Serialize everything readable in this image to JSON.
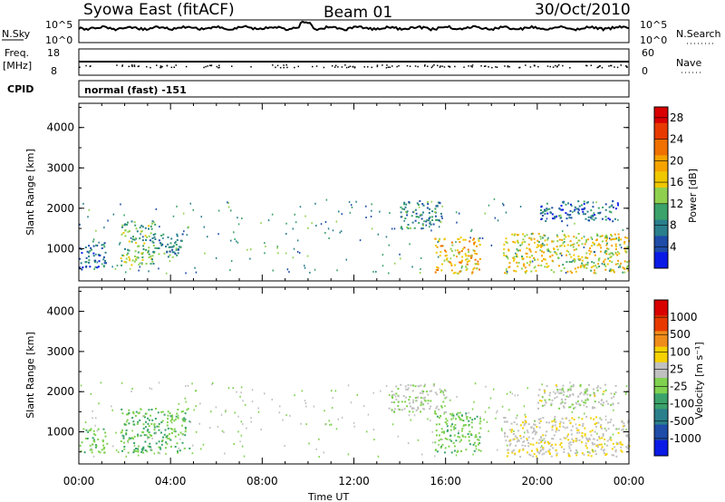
{
  "header": {
    "title": "Syowa East (fitACF)",
    "beam": "Beam 01",
    "date": "30/Oct/2010"
  },
  "top_strip": {
    "left_label": "N.Sky",
    "left_ticks": [
      "10^5",
      "10^0"
    ],
    "right_label": "N.Search",
    "right_ticks": [
      "10^5",
      "10^0"
    ]
  },
  "freq_strip": {
    "left_label_1": "Freq.",
    "left_label_2": "[MHz]",
    "left_ticks": [
      "18",
      "8"
    ],
    "right_label": "Nave",
    "right_ticks": [
      "60",
      "0"
    ]
  },
  "cpid": {
    "label": "CPID",
    "value": "normal (fast) -151"
  },
  "x_axis": {
    "label": "Time UT",
    "ticks": [
      "00:00",
      "04:00",
      "08:00",
      "12:00",
      "16:00",
      "20:00",
      "00:00"
    ]
  },
  "colors": {
    "power_scale": [
      "#0a1ae6",
      "#1e4ca8",
      "#2a7f8c",
      "#3aa26a",
      "#8fd14f",
      "#f0c800",
      "#f5a300",
      "#f07000",
      "#e83a00",
      "#d90000"
    ],
    "velocity_scale": [
      "#d90000",
      "#e83a00",
      "#f08c1a",
      "#f5d200",
      "#c0c0c0",
      "#7fd14f",
      "#3aa26a",
      "#2a7f8c",
      "#1e4ca8",
      "#0a1ae6"
    ]
  },
  "chart_data": [
    {
      "type": "heatmap",
      "name": "power",
      "ylabel": "Slant Range [km]",
      "xlabel": "Time UT",
      "xlim": [
        0,
        24
      ],
      "ylim": [
        200,
        4600
      ],
      "yticks": [
        "1000",
        "2000",
        "3000",
        "4000"
      ],
      "colorbar": {
        "label": "Power [dB]",
        "ticks": [
          "4",
          "8",
          "12",
          "16",
          "20",
          "24",
          "28"
        ],
        "range": [
          0,
          30
        ]
      },
      "echo_regions": [
        {
          "t0": 0.0,
          "t1": 1.2,
          "r0": 500,
          "r1": 1200,
          "value": 6
        },
        {
          "t0": 1.8,
          "t1": 3.3,
          "r0": 600,
          "r1": 1700,
          "value": 12
        },
        {
          "t0": 3.0,
          "t1": 4.5,
          "r0": 800,
          "r1": 1400,
          "value": 9
        },
        {
          "t0": 14.0,
          "t1": 15.8,
          "r0": 1500,
          "r1": 2200,
          "value": 8
        },
        {
          "t0": 15.5,
          "t1": 17.5,
          "r0": 400,
          "r1": 1300,
          "value": 18
        },
        {
          "t0": 18.5,
          "t1": 24.0,
          "r0": 400,
          "r1": 1400,
          "value": 16
        },
        {
          "t0": 20.0,
          "t1": 23.5,
          "r0": 1700,
          "r1": 2200,
          "value": 6
        }
      ]
    },
    {
      "type": "heatmap",
      "name": "velocity",
      "ylabel": "Slant Range [km]",
      "xlabel": "Time UT",
      "xlim": [
        0,
        24
      ],
      "ylim": [
        200,
        4600
      ],
      "yticks": [
        "1000",
        "2000",
        "3000",
        "4000"
      ],
      "colorbar": {
        "label": "Velocity [m s⁻¹]",
        "ticks": [
          "1000",
          "500",
          "100",
          "25",
          "-25",
          "-100",
          "-500",
          "-1000"
        ],
        "range": [
          -1000,
          1000
        ]
      },
      "echo_regions": [
        {
          "t0": 0.0,
          "t1": 1.2,
          "r0": 500,
          "r1": 1100,
          "value": -150
        },
        {
          "t0": 1.8,
          "t1": 4.8,
          "r0": 500,
          "r1": 1600,
          "value": -200
        },
        {
          "t0": 13.5,
          "t1": 16.0,
          "r0": 1500,
          "r1": 2200,
          "value": 0
        },
        {
          "t0": 15.5,
          "t1": 17.5,
          "r0": 500,
          "r1": 1500,
          "value": -150
        },
        {
          "t0": 18.5,
          "t1": 24.0,
          "r0": 400,
          "r1": 1400,
          "value": 150
        },
        {
          "t0": 20.0,
          "t1": 23.5,
          "r0": 1600,
          "r1": 2200,
          "value": 60
        }
      ]
    }
  ]
}
